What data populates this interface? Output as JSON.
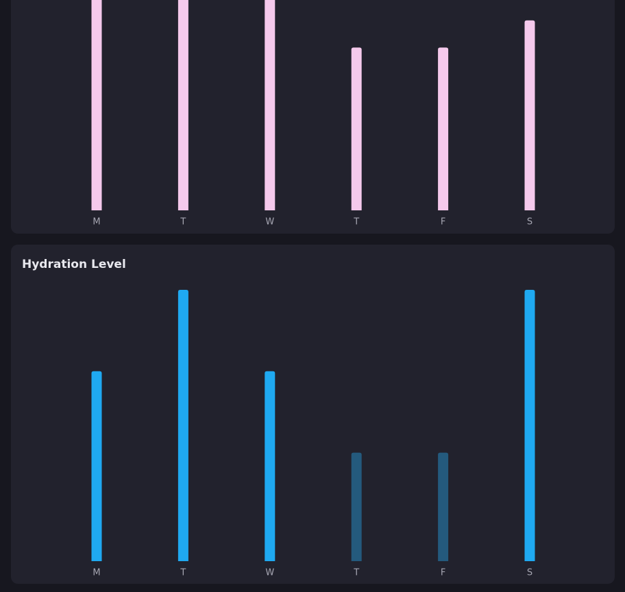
{
  "chart_data": [
    {
      "type": "bar",
      "categories": [
        "M",
        "T",
        "W",
        "T",
        "F",
        "S"
      ],
      "values": [
        90,
        90,
        90,
        60,
        60,
        70
      ],
      "colors": [
        "#f5c9ec",
        "#f5c9ec",
        "#f5c9ec",
        "#f5c9ec",
        "#f5c9ec",
        "#f5c9ec"
      ],
      "ylim": [
        0,
        100
      ]
    },
    {
      "type": "bar",
      "title": "Hydration Level",
      "categories": [
        "M",
        "T",
        "W",
        "T",
        "F",
        "S"
      ],
      "values": [
        70,
        100,
        70,
        40,
        40,
        100
      ],
      "colors": [
        "#1fa9f1",
        "#1fa9f1",
        "#1fa9f1",
        "#245a7d",
        "#245a7d",
        "#1fa9f1"
      ],
      "ylim": [
        0,
        100
      ]
    }
  ]
}
